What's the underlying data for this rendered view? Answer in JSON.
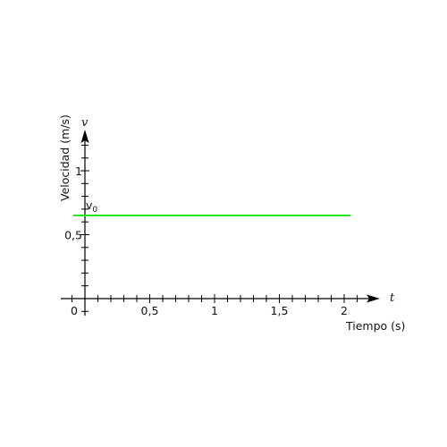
{
  "chart_data": {
    "type": "line",
    "xlabel": "Tiempo (s)",
    "ylabel": "Velocidad (m/s)",
    "x_symbol": "t",
    "y_symbol": "v",
    "xlim": [
      0,
      2.15
    ],
    "ylim": [
      0,
      1.3
    ],
    "x_ticks": [
      {
        "value": 0,
        "label": "0"
      },
      {
        "value": 0.5,
        "label": "0,5"
      },
      {
        "value": 1,
        "label": "1"
      },
      {
        "value": 1.5,
        "label": "1,5"
      },
      {
        "value": 2,
        "label": "2"
      }
    ],
    "y_ticks": [
      {
        "value": 0.5,
        "label": "0,5"
      },
      {
        "value": 1,
        "label": "1"
      }
    ],
    "series": [
      {
        "x": [
          -0.09,
          2.05
        ],
        "y": [
          0.65,
          0.65
        ],
        "color": "#22e822",
        "annotation": {
          "base": "v",
          "sub": "0"
        }
      }
    ],
    "grid": false
  }
}
